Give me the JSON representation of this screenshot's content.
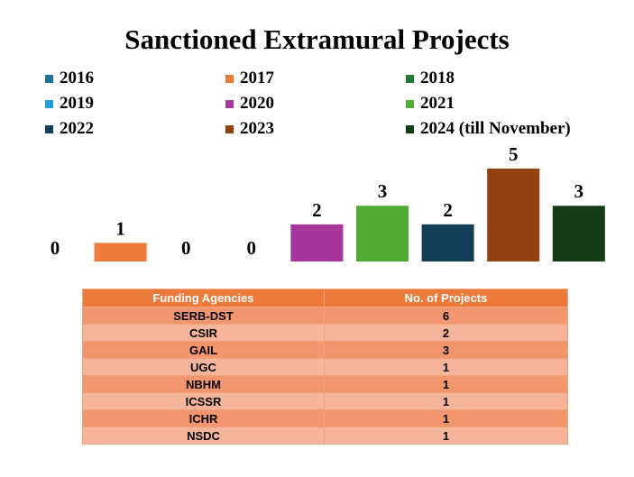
{
  "chart_data": {
    "type": "bar",
    "title": "Sanctioned Extramural Projects",
    "categories": [
      "2016",
      "2017",
      "2018",
      "2019",
      "2020",
      "2021",
      "2022",
      "2023",
      "2024 (till November)"
    ],
    "values": [
      0,
      1,
      0,
      0,
      2,
      3,
      2,
      5,
      3
    ],
    "colors": [
      "#1e6f99",
      "#ec7a3b",
      "#1e7a36",
      "#1e9fd6",
      "#a63699",
      "#4eac32",
      "#123e57",
      "#93400f",
      "#143c15"
    ],
    "data_labels": [
      "0",
      "1",
      "0",
      "0",
      "2",
      "3",
      "2",
      "5",
      "3"
    ],
    "legend_placement": "top",
    "grid": false,
    "ylim": [
      0,
      5
    ]
  },
  "table": {
    "headers": [
      "Funding Agencies",
      "No. of Projects"
    ],
    "rows": [
      [
        "SERB-DST",
        "6"
      ],
      [
        "CSIR",
        "2"
      ],
      [
        "GAIL",
        "3"
      ],
      [
        "UGC",
        "1"
      ],
      [
        "NBHM",
        "1"
      ],
      [
        "ICSSR",
        "1"
      ],
      [
        "ICHR",
        "1"
      ],
      [
        "NSDC",
        "1"
      ]
    ]
  }
}
